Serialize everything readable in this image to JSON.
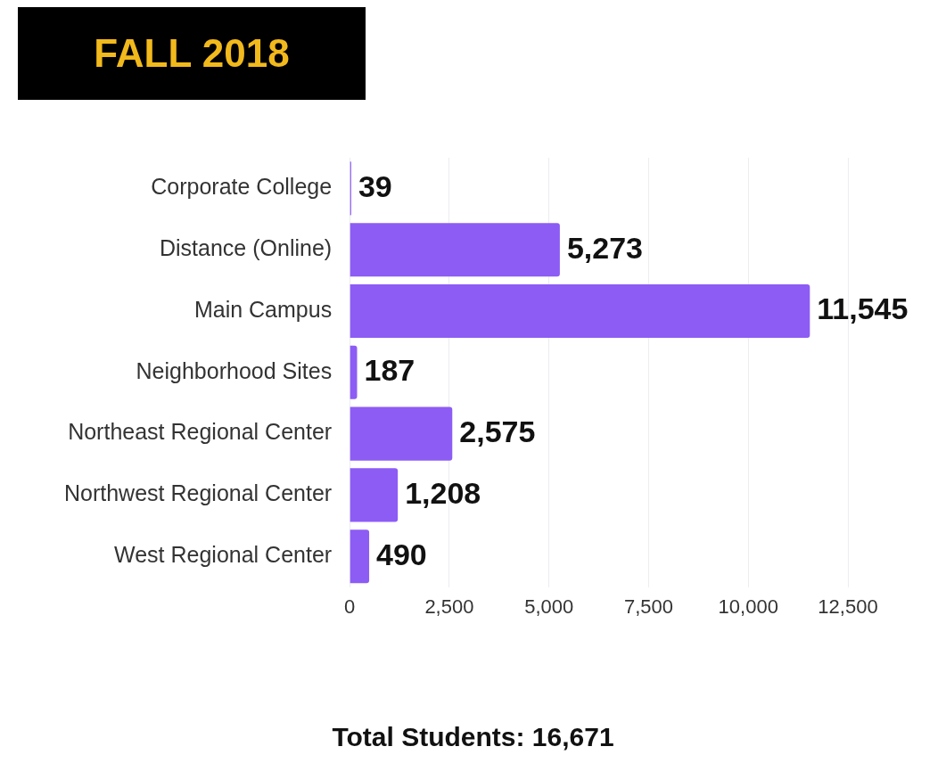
{
  "chart_data": {
    "type": "bar",
    "orientation": "horizontal",
    "title": "FALL 2018",
    "categories": [
      "Corporate College",
      "Distance (Online)",
      "Main Campus",
      "Neighborhood Sites",
      "Northeast Regional Center",
      "Northwest Regional Center",
      "West Regional Center"
    ],
    "values": [
      39,
      5273,
      11545,
      187,
      2575,
      1208,
      490
    ],
    "color": "#8c5cf5",
    "xlim": [
      0,
      12500
    ],
    "xticks": [
      {
        "value": 0,
        "label": "0"
      },
      {
        "value": 2500,
        "label": "2,500"
      },
      {
        "value": 5000,
        "label": "5,000"
      },
      {
        "value": 7500,
        "label": "7,500"
      },
      {
        "value": 10000,
        "label": "10,000"
      },
      {
        "value": 12500,
        "label": "12,500"
      }
    ],
    "value_labels": [
      "39",
      "5,273",
      "11,545",
      "187",
      "2,575",
      "1,208",
      "490"
    ],
    "grid": "x",
    "legend": false,
    "annotations": [
      "Total Students: 16,671"
    ]
  }
}
